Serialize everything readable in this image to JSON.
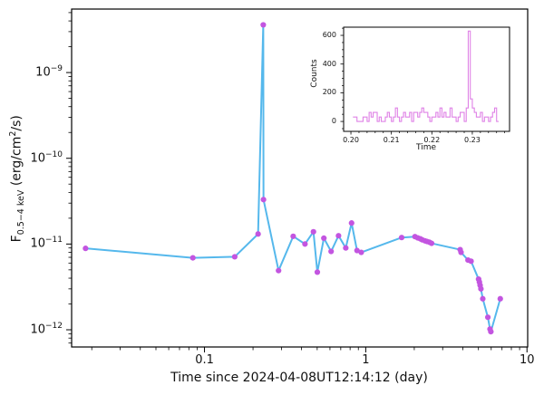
{
  "figure": {
    "xlabel": "Time since 2024-04-08UT12:14:12 (day)",
    "ylabel": {
      "prefix": "F",
      "sub": "0.5−4 keV",
      "unit_pre": " (erg/cm",
      "unit_sup": "2",
      "unit_post": "/s)"
    },
    "colors": {
      "line": "#55b8ec",
      "marker": "#c355e0",
      "inset_line": "#df82e6",
      "axis": "#000000"
    }
  },
  "inset": {
    "xlabel": "Time",
    "ylabel": "Counts"
  },
  "chart_data": [
    {
      "type": "line",
      "title": "",
      "xlabel": "Time since 2024-04-08UT12:14:12 (day)",
      "ylabel": "F_0.5-4 keV (erg/cm^2/s)",
      "xscale": "log",
      "yscale": "log",
      "xlim": [
        0.015,
        10.1
      ],
      "ylim": [
        6.3e-13,
        5.5e-09
      ],
      "x_tick_labels": [
        "0.1",
        "1",
        "10"
      ],
      "x_tick_values": [
        0.1,
        1,
        10
      ],
      "y_tick_exponents": [
        -9,
        -10,
        -11,
        -12
      ],
      "x": [
        0.0183,
        0.0847,
        0.154,
        0.215,
        0.2315,
        0.2323,
        0.288,
        0.355,
        0.42,
        0.474,
        0.501,
        0.55,
        0.61,
        0.678,
        0.752,
        0.817,
        0.883,
        0.938,
        1.67,
        2.02,
        2.1,
        2.18,
        2.24,
        2.33,
        2.4,
        2.48,
        2.56,
        3.85,
        3.9,
        4.31,
        4.5,
        5.01,
        5.07,
        5.12,
        5.18,
        5.32,
        5.72,
        5.9,
        5.97,
        6.83
      ],
      "y": [
        8.9e-12,
        6.9e-12,
        7.1e-12,
        1.31e-11,
        3.6e-09,
        3.3e-11,
        4.9e-12,
        1.23e-11,
        1e-11,
        1.39e-11,
        4.7e-12,
        1.17e-11,
        8.2e-12,
        1.25e-11,
        9e-12,
        1.76e-11,
        8.4e-12,
        8e-12,
        1.19e-11,
        1.22e-11,
        1.18e-11,
        1.15e-11,
        1.12e-11,
        1.09e-11,
        1.07e-11,
        1.05e-11,
        1.02e-11,
        8.6e-12,
        8e-12,
        6.5e-12,
        6.3e-12,
        3.9e-12,
        3.6e-12,
        3.3e-12,
        3e-12,
        2.3e-12,
        1.4e-12,
        1.02e-12,
        9.5e-13,
        2.3e-12
      ]
    },
    {
      "type": "step-histogram",
      "xlabel": "Time",
      "ylabel": "Counts",
      "xlim": [
        0.1982,
        0.2392
      ],
      "ylim": [
        -69,
        657
      ],
      "x_tick_labels": [
        "0.20",
        "0.21",
        "0.22",
        "0.23"
      ],
      "x_tick_values": [
        0.2,
        0.21,
        0.22,
        0.23
      ],
      "y_tick_values": [
        0,
        200,
        400,
        600
      ],
      "bin_start": 0.2005,
      "bin_width": 0.0005,
      "counts": [
        31,
        31,
        0,
        0,
        0,
        31,
        31,
        0,
        63,
        31,
        63,
        63,
        0,
        31,
        0,
        0,
        31,
        63,
        31,
        0,
        31,
        94,
        31,
        0,
        31,
        63,
        31,
        31,
        63,
        0,
        63,
        63,
        31,
        63,
        94,
        63,
        63,
        31,
        0,
        31,
        31,
        63,
        31,
        94,
        31,
        63,
        31,
        31,
        94,
        31,
        31,
        0,
        31,
        63,
        63,
        0,
        94,
        630,
        157,
        94,
        63,
        31,
        31,
        63,
        0,
        31,
        31,
        0,
        31,
        63,
        94,
        0
      ]
    }
  ]
}
